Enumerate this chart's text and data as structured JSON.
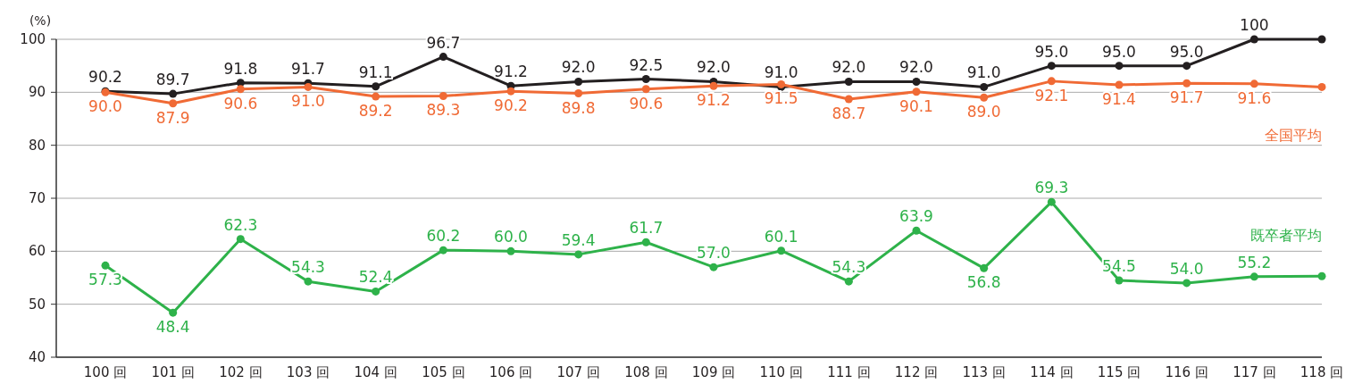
{
  "chart_data": {
    "type": "line",
    "ylabel": "(%)",
    "categories": [
      "100 回",
      "101 回",
      "102 回",
      "103 回",
      "104 回",
      "105 回",
      "106 回",
      "107 回",
      "108 回",
      "109 回",
      "110 回",
      "111 回",
      "112 回",
      "113 回",
      "114 回",
      "115 回",
      "116 回",
      "117 回",
      "118 回"
    ],
    "ylim": [
      40,
      100
    ],
    "yticks": [
      40,
      50,
      60,
      70,
      80,
      90,
      100
    ],
    "grid": "y",
    "marker": "circle",
    "line_style": "solid",
    "series": [
      {
        "color": "#231f20",
        "values": [
          90.2,
          89.7,
          91.8,
          91.7,
          91.1,
          96.7,
          91.2,
          92.0,
          92.5,
          92.0,
          91.0,
          92.0,
          92.0,
          91.0,
          95.0,
          95.0,
          95.0,
          100,
          100
        ],
        "value_labels": [
          "90.2",
          "89.7",
          "91.8",
          "91.7",
          "91.1",
          "96.7",
          "91.2",
          "92.0",
          "92.5",
          "92.0",
          "91.0",
          "92.0",
          "92.0",
          "91.0",
          "95.0",
          "95.0",
          "95.0",
          "100",
          null
        ]
      },
      {
        "name": "全国平均",
        "color": "#f06a35",
        "values": [
          90.0,
          87.9,
          90.6,
          91.0,
          89.2,
          89.3,
          90.2,
          89.8,
          90.6,
          91.2,
          91.5,
          88.7,
          90.1,
          89.0,
          92.1,
          91.4,
          91.7,
          91.6,
          91.0
        ],
        "value_labels": [
          "90.0",
          "87.9",
          "90.6",
          "91.0",
          "89.2",
          "89.3",
          "90.2",
          "89.8",
          "90.6",
          "91.2",
          "91.5",
          "88.7",
          "90.1",
          "89.0",
          "92.1",
          "91.4",
          "91.7",
          "91.6",
          null
        ]
      },
      {
        "name": "既卒者平均",
        "color": "#2eb24a",
        "values": [
          57.3,
          48.4,
          62.3,
          54.3,
          52.4,
          60.2,
          60.0,
          59.4,
          61.7,
          57.0,
          60.1,
          54.3,
          63.9,
          56.8,
          69.3,
          54.5,
          54.0,
          55.2,
          55.3
        ],
        "value_labels": [
          "57.3",
          "48.4",
          "62.3",
          "54.3",
          "52.4",
          "60.2",
          "60.0",
          "59.4",
          "61.7",
          "57.0",
          "60.1",
          "54.3",
          "63.9",
          "56.8",
          "69.3",
          "54.5",
          "54.0",
          "55.2",
          null
        ]
      }
    ]
  }
}
